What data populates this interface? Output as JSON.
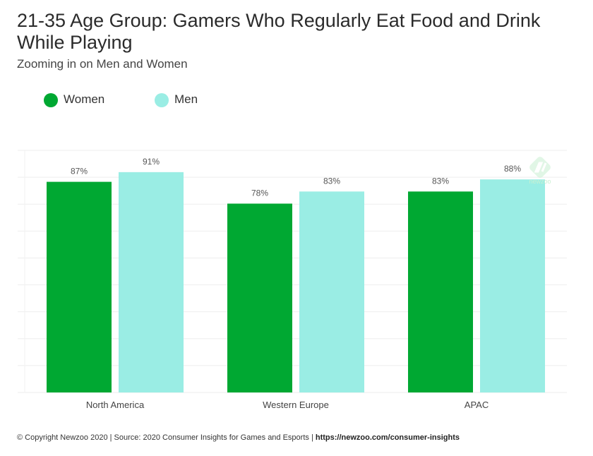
{
  "title": "21-35 Age Group: Gamers Who Regularly Eat Food and Drink While Playing",
  "subtitle": "Zooming in on Men and Women",
  "legend": [
    {
      "label": "Women",
      "color": "#00a832"
    },
    {
      "label": "Men",
      "color": "#9aede4"
    }
  ],
  "watermark": {
    "text": "newzoo",
    "icon": "newzoo-logo-icon"
  },
  "footer": {
    "text": "© Copyright Newzoo 2020 | Source: 2020 Consumer Insights for Games and Esports | ",
    "url": "https://newzoo.com/consumer-insights"
  },
  "chart_data": {
    "type": "bar",
    "categories": [
      "North America",
      "Western Europe",
      "APAC"
    ],
    "series": [
      {
        "name": "Women",
        "values": [
          87,
          78,
          83
        ],
        "labels": [
          "87%",
          "78%",
          "83%"
        ],
        "color": "#00a832"
      },
      {
        "name": "Men",
        "values": [
          91,
          83,
          88
        ],
        "labels": [
          "91%",
          "83%",
          "88%"
        ],
        "color": "#9aede4"
      }
    ],
    "ylim": [
      0,
      100
    ],
    "grid": true,
    "legend_position": "top-left"
  }
}
